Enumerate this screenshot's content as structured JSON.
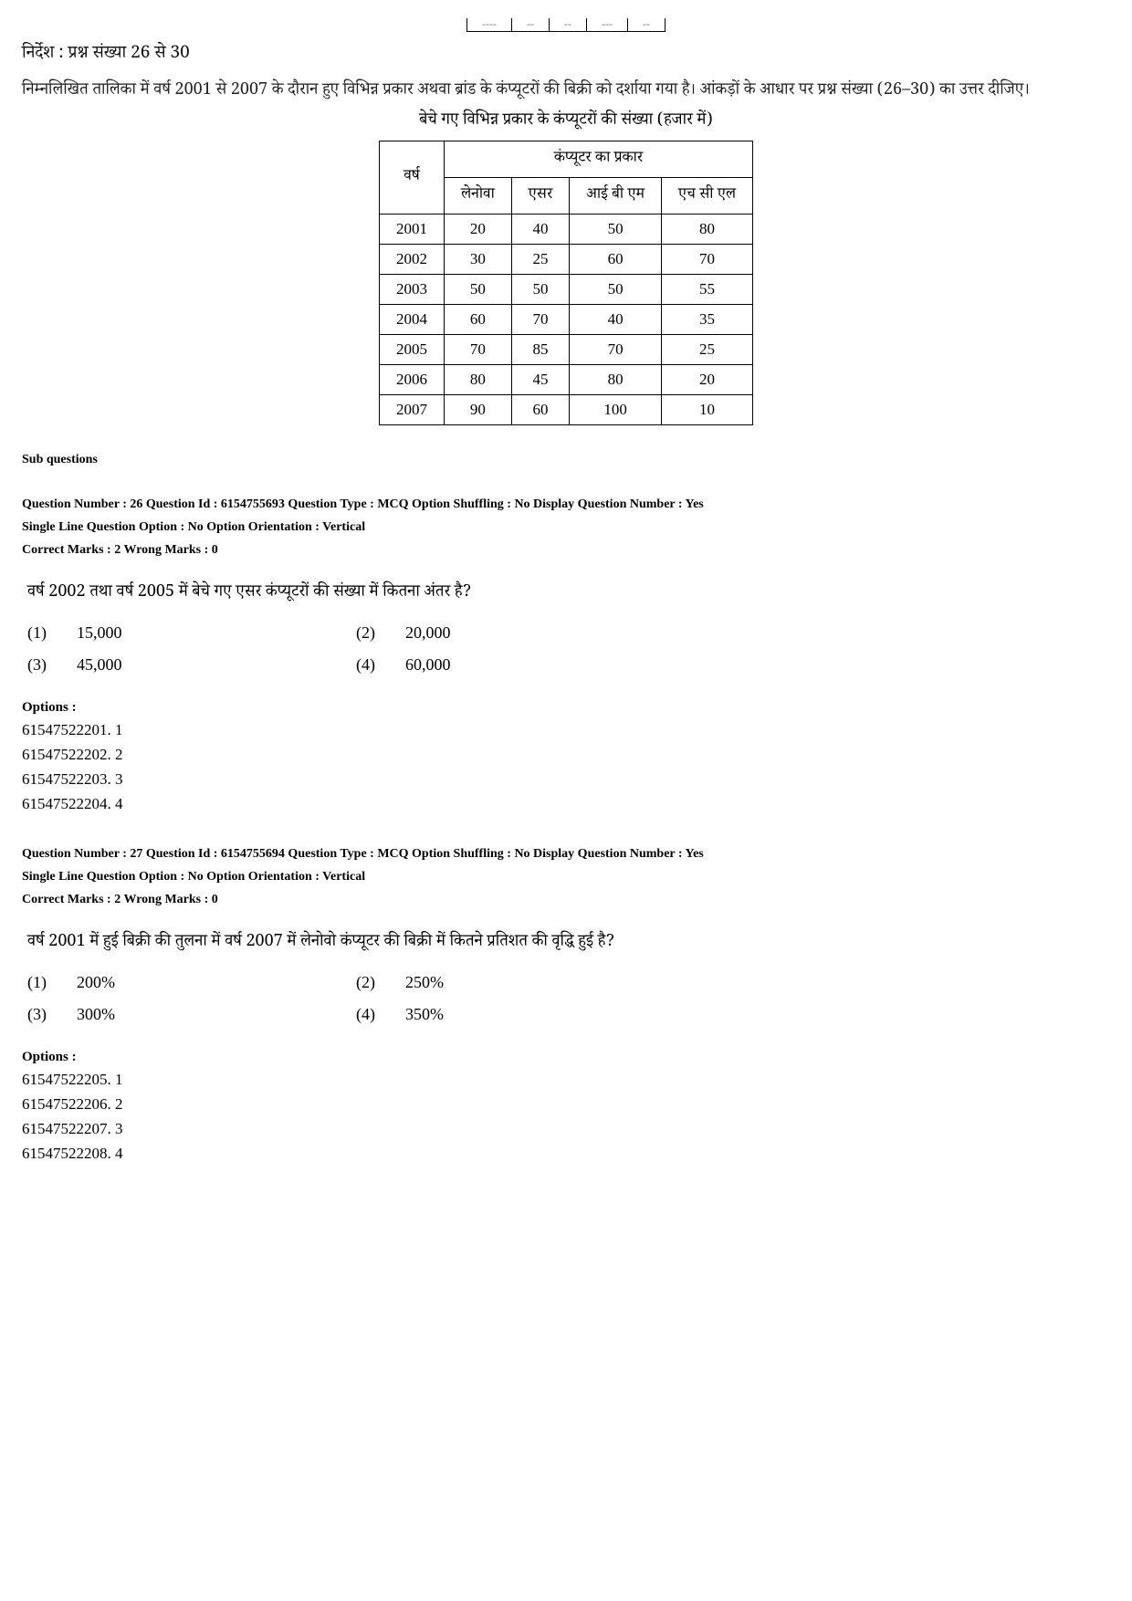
{
  "top_clip": [
    "----",
    "--",
    "--",
    "---",
    "--"
  ],
  "instruction_heading": "निर्देश : प्रश्न संख्या 26 से 30",
  "intro_paragraph": "निम्नलिखित तालिका में वर्ष 2001 से 2007 के दौरान हुए विभिन्न प्रकार अथवा ब्रांड के कंप्यूटरों की बिक्री को दर्शाया गया है। आंकड़ों के आधार पर प्रश्न संख्या (26–30) का उत्तर दीजिए।",
  "table": {
    "caption": "बेचे गए विभिन्न प्रकार के कंप्यूटरों की संख्या (हजार में)",
    "row_header": "वर्ष",
    "group_header": "कंप्यूटर का प्रकार",
    "columns": [
      "लेनोवा",
      "एसर",
      "आई बी एम",
      "एच सी एल"
    ],
    "rows": [
      {
        "year": "2001",
        "vals": [
          "20",
          "40",
          "50",
          "80"
        ]
      },
      {
        "year": "2002",
        "vals": [
          "30",
          "25",
          "60",
          "70"
        ]
      },
      {
        "year": "2003",
        "vals": [
          "50",
          "50",
          "50",
          "55"
        ]
      },
      {
        "year": "2004",
        "vals": [
          "60",
          "70",
          "40",
          "35"
        ]
      },
      {
        "year": "2005",
        "vals": [
          "70",
          "85",
          "70",
          "25"
        ]
      },
      {
        "year": "2006",
        "vals": [
          "80",
          "45",
          "80",
          "20"
        ]
      },
      {
        "year": "2007",
        "vals": [
          "90",
          "60",
          "100",
          "10"
        ]
      }
    ]
  },
  "sub_questions_label": "Sub questions",
  "q26": {
    "meta_line1": "Question Number : 26  Question Id : 6154755693  Question Type : MCQ  Option Shuffling : No  Display Question Number : Yes",
    "meta_line2": "Single Line Question Option : No  Option Orientation : Vertical",
    "meta_line3": "Correct Marks : 2  Wrong Marks : 0",
    "question": "वर्ष 2002 तथा वर्ष 2005 में बेचे गए एसर कंप्यूटरों की संख्या में कितना अंतर है?",
    "opts": [
      {
        "n": "(1)",
        "v": "15,000"
      },
      {
        "n": "(2)",
        "v": "20,000"
      },
      {
        "n": "(3)",
        "v": "45,000"
      },
      {
        "n": "(4)",
        "v": "60,000"
      }
    ],
    "options_label": "Options :",
    "options_list": [
      "61547522201. 1",
      "61547522202. 2",
      "61547522203. 3",
      "61547522204. 4"
    ]
  },
  "q27": {
    "meta_line1": "Question Number : 27  Question Id : 6154755694  Question Type : MCQ  Option Shuffling : No  Display Question Number : Yes",
    "meta_line2": "Single Line Question Option : No  Option Orientation : Vertical",
    "meta_line3": "Correct Marks : 2  Wrong Marks : 0",
    "question": "वर्ष 2001 में हुई बिक्री की तुलना में वर्ष 2007 में लेनोवो कंप्यूटर की बिक्री में कितने प्रतिशत की वृद्धि हुई है?",
    "opts": [
      {
        "n": "(1)",
        "v": "200%"
      },
      {
        "n": "(2)",
        "v": "250%"
      },
      {
        "n": "(3)",
        "v": "300%"
      },
      {
        "n": "(4)",
        "v": "350%"
      }
    ],
    "options_label": "Options :",
    "options_list": [
      "61547522205. 1",
      "61547522206. 2",
      "61547522207. 3",
      "61547522208. 4"
    ]
  }
}
